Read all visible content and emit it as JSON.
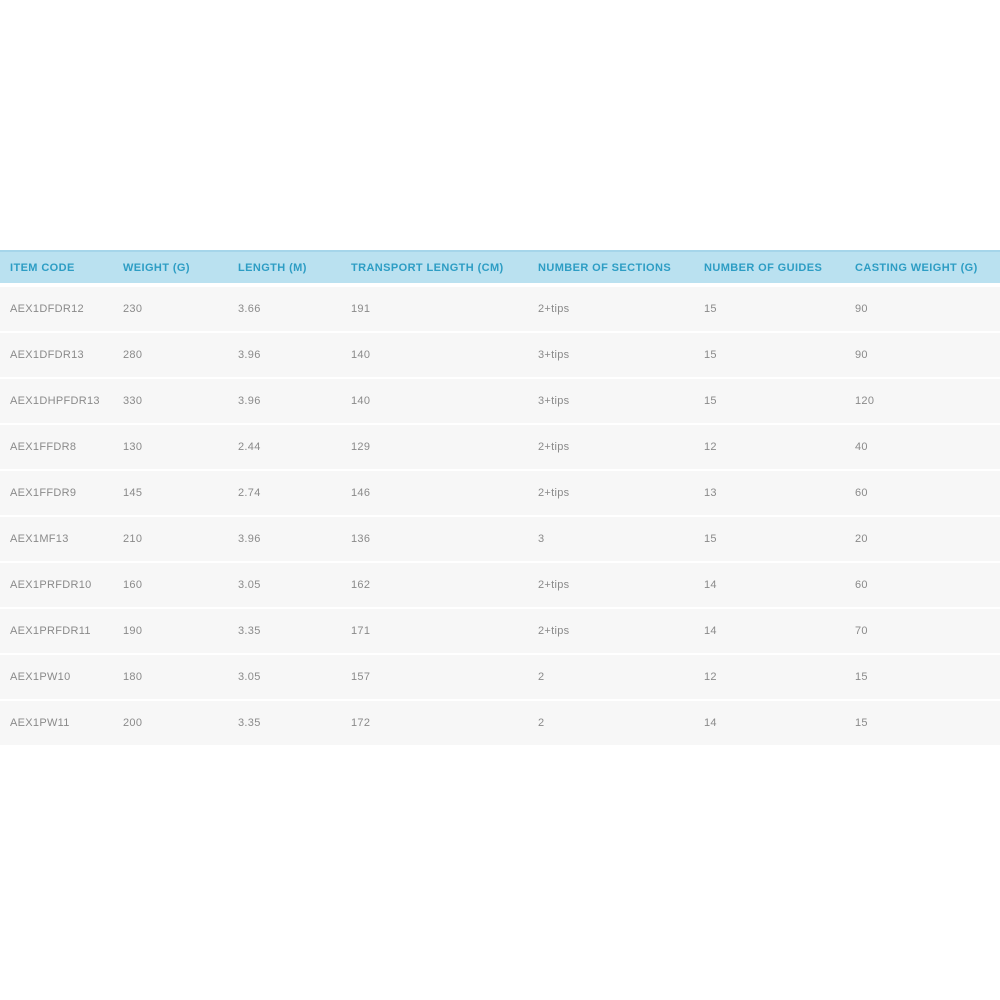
{
  "colors": {
    "header_bg": "#bae1f0",
    "header_border_top": "#a5d5ea",
    "header_text": "#2d9dc4",
    "row_bg": "#f7f7f7",
    "row_separator": "#ffffff",
    "body_text": "#8a8a8a",
    "page_bg": "#ffffff"
  },
  "table": {
    "columns": [
      "ITEM CODE",
      "WEIGHT (G)",
      "LENGTH (M)",
      "TRANSPORT LENGTH (CM)",
      "NUMBER OF SECTIONS",
      "NUMBER OF GUIDES",
      "CASTING WEIGHT (G)"
    ],
    "rows": [
      [
        "AEX1DFDR12",
        "230",
        "3.66",
        "191",
        "2+tips",
        "15",
        "90"
      ],
      [
        "AEX1DFDR13",
        "280",
        "3.96",
        "140",
        "3+tips",
        "15",
        "90"
      ],
      [
        "AEX1DHPFDR13",
        "330",
        "3.96",
        "140",
        "3+tips",
        "15",
        "120"
      ],
      [
        "AEX1FFDR8",
        "130",
        "2.44",
        "129",
        "2+tips",
        "12",
        "40"
      ],
      [
        "AEX1FFDR9",
        "145",
        "2.74",
        "146",
        "2+tips",
        "13",
        "60"
      ],
      [
        "AEX1MF13",
        "210",
        "3.96",
        "136",
        "3",
        "15",
        "20"
      ],
      [
        "AEX1PRFDR10",
        "160",
        "3.05",
        "162",
        "2+tips",
        "14",
        "60"
      ],
      [
        "AEX1PRFDR11",
        "190",
        "3.35",
        "171",
        "2+tips",
        "14",
        "70"
      ],
      [
        "AEX1PW10",
        "180",
        "3.05",
        "157",
        "2",
        "12",
        "15"
      ],
      [
        "AEX1PW11",
        "200",
        "3.35",
        "172",
        "2",
        "14",
        "15"
      ]
    ]
  }
}
